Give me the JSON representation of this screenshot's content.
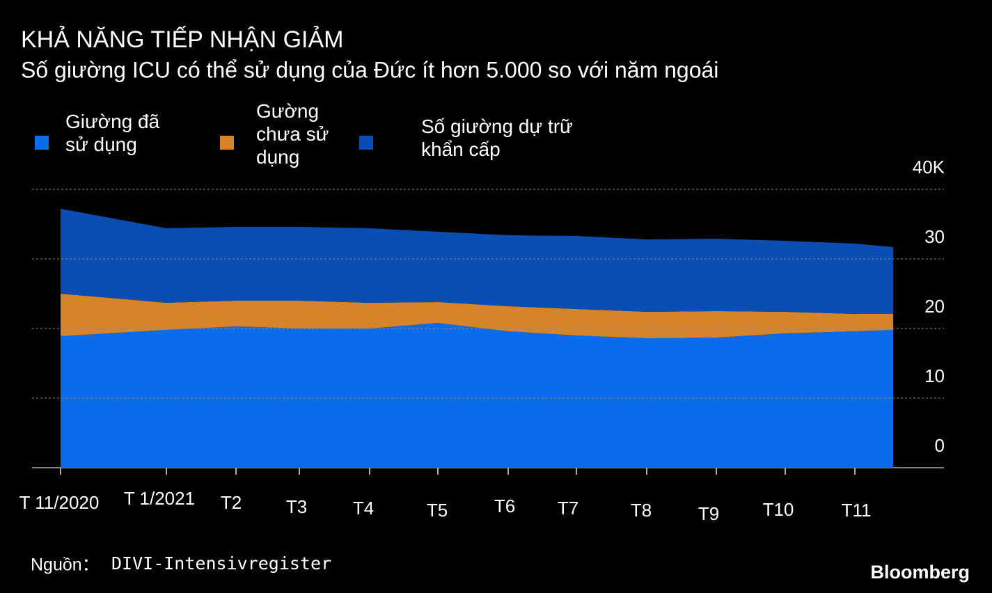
{
  "chart_data": {
    "type": "stacked_area",
    "title": "KHẢ NĂNG TIẾP NHẬN GIẢM",
    "subtitle": "Số giường ICU có thể sử dụng của Đức ít hơn 5.000 so với năm ngoái",
    "categories": [
      "T 11/2020",
      "T 1/2021",
      "T2",
      "T3",
      "T4",
      "T5",
      "T6",
      "T7",
      "T8",
      "T9",
      "T10",
      "T11",
      null
    ],
    "series": [
      {
        "name": "Giường đã sử dụng",
        "color": "#0a6cea",
        "values": [
          18.9,
          19.8,
          20.3,
          20.0,
          20.0,
          20.8,
          19.6,
          19.0,
          18.6,
          18.7,
          19.3,
          19.6,
          19.8
        ]
      },
      {
        "name": "Gường chưa sử dụng",
        "color": "#d5842a",
        "values": [
          6.1,
          3.9,
          3.7,
          4.0,
          3.7,
          3.0,
          3.6,
          3.8,
          3.8,
          3.8,
          3.1,
          2.5,
          2.3
        ]
      },
      {
        "name": "Số giường dự trữ khẩn cấp",
        "color": "#0a4eb4",
        "values": [
          12.2,
          10.7,
          10.6,
          10.6,
          10.7,
          10.1,
          10.2,
          10.5,
          10.4,
          10.4,
          10.2,
          10.1,
          9.6
        ]
      }
    ],
    "ylim": [
      0,
      40
    ],
    "yticks": [
      0,
      10,
      20,
      30,
      {
        "value": 40,
        "label": "40K"
      }
    ],
    "grid": true,
    "source_label": "Nguồn：",
    "source": "DIVI-Intensivregister",
    "brand": "Bloomberg"
  }
}
